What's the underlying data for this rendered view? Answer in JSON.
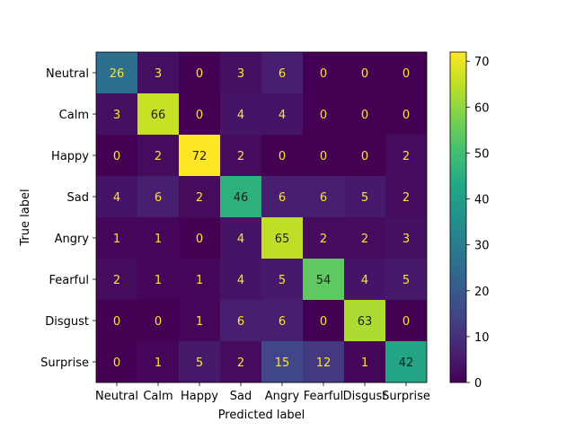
{
  "chart_data": {
    "type": "heatmap",
    "title": "",
    "xlabel": "Predicted label",
    "ylabel": "True label",
    "x_categories": [
      "Neutral",
      "Calm",
      "Happy",
      "Sad",
      "Angry",
      "Fearful",
      "Disgust",
      "Surprise"
    ],
    "y_categories": [
      "Neutral",
      "Calm",
      "Happy",
      "Sad",
      "Angry",
      "Fearful",
      "Disgust",
      "Surprise"
    ],
    "matrix": [
      [
        26,
        3,
        0,
        3,
        6,
        0,
        0,
        0
      ],
      [
        3,
        66,
        0,
        4,
        4,
        0,
        0,
        0
      ],
      [
        0,
        2,
        72,
        2,
        0,
        0,
        0,
        2
      ],
      [
        4,
        6,
        2,
        46,
        6,
        6,
        5,
        2
      ],
      [
        1,
        1,
        0,
        4,
        65,
        2,
        2,
        3
      ],
      [
        2,
        1,
        1,
        4,
        5,
        54,
        4,
        5
      ],
      [
        0,
        0,
        1,
        6,
        6,
        0,
        63,
        0
      ],
      [
        0,
        1,
        5,
        2,
        15,
        12,
        1,
        42
      ]
    ],
    "vmin": 0,
    "vmax": 72,
    "colormap": "viridis",
    "colorbar_ticks": [
      0,
      10,
      20,
      30,
      40,
      50,
      60,
      70
    ],
    "text_color_low": "#fde725",
    "text_color_high": "#1f1f1f",
    "grid": false
  }
}
